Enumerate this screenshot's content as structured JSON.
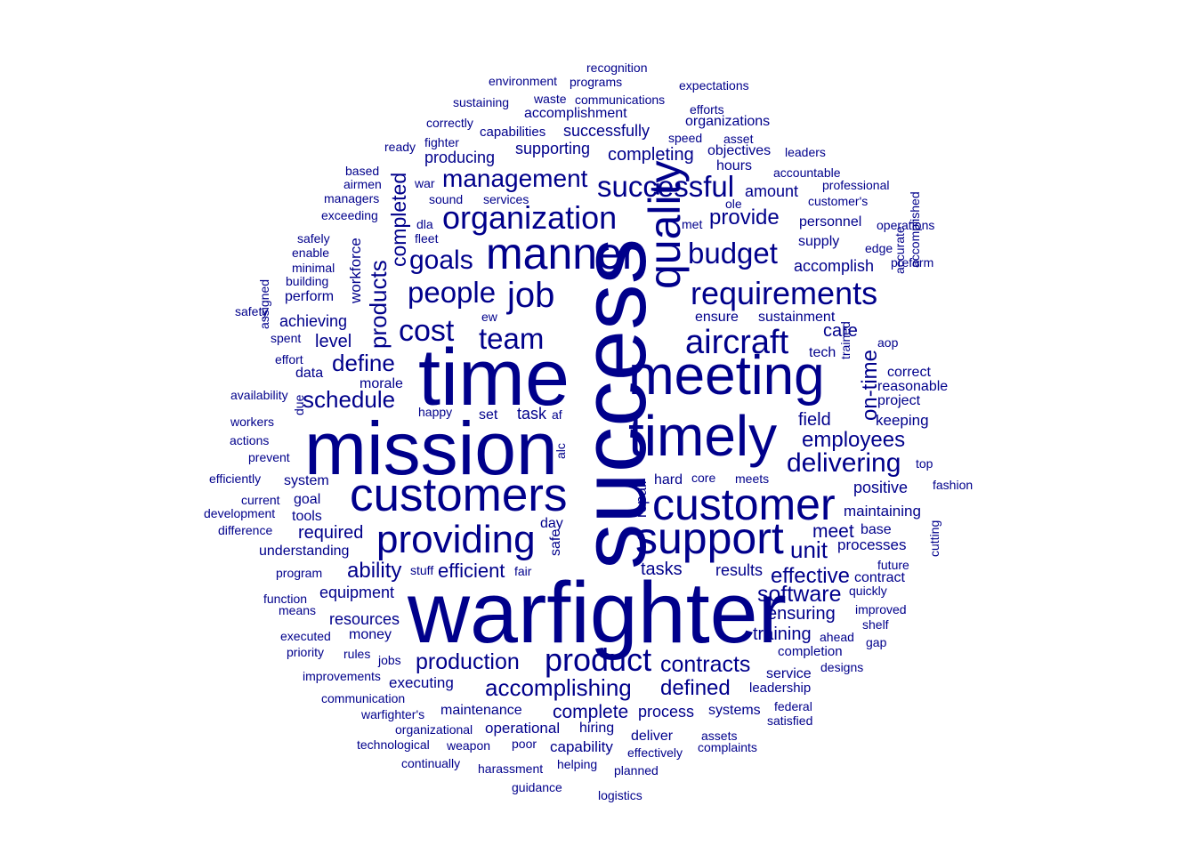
{
  "words": [
    {
      "text": "warfighter",
      "size": 11,
      "vertical": false
    },
    {
      "text": "success",
      "size": 10,
      "vertical": true
    },
    {
      "text": "time",
      "size": 10,
      "vertical": false
    },
    {
      "text": "mission",
      "size": 10,
      "vertical": false
    },
    {
      "text": "timely",
      "size": 8,
      "vertical": false
    },
    {
      "text": "meeting",
      "size": 8,
      "vertical": false
    },
    {
      "text": "quality",
      "size": 7,
      "vertical": true
    },
    {
      "text": "customers",
      "size": 7,
      "vertical": false
    },
    {
      "text": "customer",
      "size": 7,
      "vertical": false
    },
    {
      "text": "support",
      "size": 7,
      "vertical": false
    },
    {
      "text": "manner",
      "size": 7,
      "vertical": false
    },
    {
      "text": "providing",
      "size": 6,
      "vertical": false
    },
    {
      "text": "product",
      "size": 5,
      "vertical": false
    },
    {
      "text": "organization",
      "size": 5,
      "vertical": false
    },
    {
      "text": "aircraft",
      "size": 5,
      "vertical": false
    },
    {
      "text": "job",
      "size": 5,
      "vertical": false
    },
    {
      "text": "requirements",
      "size": 5,
      "vertical": false
    },
    {
      "text": "successful",
      "size": 5,
      "vertical": false
    },
    {
      "text": "cost",
      "size": 4,
      "vertical": false
    },
    {
      "text": "team",
      "size": 4,
      "vertical": false
    },
    {
      "text": "people",
      "size": 4,
      "vertical": false
    },
    {
      "text": "budget",
      "size": 4,
      "vertical": false
    },
    {
      "text": "goals",
      "size": 4,
      "vertical": false
    },
    {
      "text": "management",
      "size": 4,
      "vertical": false
    },
    {
      "text": "delivering",
      "size": 4,
      "vertical": false
    },
    {
      "text": "accomplishing",
      "size": 3,
      "vertical": false
    },
    {
      "text": "production",
      "size": 3,
      "vertical": false
    },
    {
      "text": "contracts",
      "size": 3,
      "vertical": false
    },
    {
      "text": "define",
      "size": 3,
      "vertical": false
    },
    {
      "text": "schedule",
      "size": 3,
      "vertical": false
    },
    {
      "text": "employees",
      "size": 3,
      "vertical": false
    },
    {
      "text": "software",
      "size": 3,
      "vertical": false
    },
    {
      "text": "effective",
      "size": 3,
      "vertical": false
    },
    {
      "text": "products",
      "size": 3,
      "vertical": true
    },
    {
      "text": "defined",
      "size": 3,
      "vertical": false
    },
    {
      "text": "ability",
      "size": 3,
      "vertical": false
    },
    {
      "text": "unit",
      "size": 3,
      "vertical": false
    },
    {
      "text": "provide",
      "size": 3,
      "vertical": false
    },
    {
      "text": "completed",
      "size": 3,
      "vertical": true
    },
    {
      "text": "on-time",
      "size": 3,
      "vertical": true
    },
    {
      "text": "efficient",
      "size": 2,
      "vertical": false
    },
    {
      "text": "complete",
      "size": 2,
      "vertical": false
    },
    {
      "text": "meet",
      "size": 2,
      "vertical": false
    },
    {
      "text": "tasks",
      "size": 2,
      "vertical": false
    },
    {
      "text": "training",
      "size": 2,
      "vertical": false
    },
    {
      "text": "ensuring",
      "size": 2,
      "vertical": false
    },
    {
      "text": "level",
      "size": 2,
      "vertical": false
    },
    {
      "text": "care",
      "size": 2,
      "vertical": false
    },
    {
      "text": "completing",
      "size": 2,
      "vertical": false
    },
    {
      "text": "field",
      "size": 2,
      "vertical": false
    },
    {
      "text": "positive",
      "size": 2,
      "vertical": false
    },
    {
      "text": "process",
      "size": 2,
      "vertical": false
    },
    {
      "text": "results",
      "size": 2,
      "vertical": false
    },
    {
      "text": "required",
      "size": 2,
      "vertical": false
    },
    {
      "text": "achieving",
      "size": 2,
      "vertical": false
    },
    {
      "text": "supporting",
      "size": 2,
      "vertical": false
    },
    {
      "text": "successfully",
      "size": 2,
      "vertical": false
    },
    {
      "text": "accomplish",
      "size": 2,
      "vertical": false
    },
    {
      "text": "amount",
      "size": 2,
      "vertical": false
    },
    {
      "text": "producing",
      "size": 2,
      "vertical": false
    },
    {
      "text": "accomplishment",
      "size": 2,
      "vertical": false
    },
    {
      "text": "equipment",
      "size": 2,
      "vertical": false
    },
    {
      "text": "resources",
      "size": 2,
      "vertical": false
    },
    {
      "text": "maintaining",
      "size": 2,
      "vertical": false
    },
    {
      "text": "processes",
      "size": 2,
      "vertical": false
    },
    {
      "text": "workforce",
      "size": 2,
      "vertical": true
    },
    {
      "text": "repair",
      "size": 2,
      "vertical": true
    },
    {
      "text": "executing",
      "size": 2,
      "vertical": false
    },
    {
      "text": "task",
      "size": 2,
      "vertical": false
    },
    {
      "text": "understanding",
      "size": 2,
      "vertical": false
    },
    {
      "text": "money",
      "size": 2,
      "vertical": false
    },
    {
      "text": "maintenance",
      "size": 2,
      "vertical": false
    },
    {
      "text": "operational",
      "size": 2,
      "vertical": false
    },
    {
      "text": "capability",
      "size": 2,
      "vertical": false
    },
    {
      "text": "deliver",
      "size": 2,
      "vertical": false
    },
    {
      "text": "systems",
      "size": 2,
      "vertical": false
    },
    {
      "text": "leadership",
      "size": 2,
      "vertical": false
    },
    {
      "text": "service",
      "size": 2,
      "vertical": false
    },
    {
      "text": "completion",
      "size": 2,
      "vertical": false
    },
    {
      "text": "hiring",
      "size": 2,
      "vertical": false
    },
    {
      "text": "sustainment",
      "size": 2,
      "vertical": false
    },
    {
      "text": "ensure",
      "size": 2,
      "vertical": false
    },
    {
      "text": "supply",
      "size": 2,
      "vertical": false
    },
    {
      "text": "personnel",
      "size": 2,
      "vertical": false
    },
    {
      "text": "keeping",
      "size": 2,
      "vertical": false
    },
    {
      "text": "project",
      "size": 2,
      "vertical": false
    },
    {
      "text": "correct",
      "size": 2,
      "vertical": false
    },
    {
      "text": "reasonable",
      "size": 2,
      "vertical": false
    },
    {
      "text": "system",
      "size": 2,
      "vertical": false
    },
    {
      "text": "goal",
      "size": 2,
      "vertical": false
    },
    {
      "text": "tools",
      "size": 2,
      "vertical": false
    },
    {
      "text": "data",
      "size": 2,
      "vertical": false
    },
    {
      "text": "morale",
      "size": 2,
      "vertical": false
    },
    {
      "text": "perform",
      "size": 2,
      "vertical": false
    },
    {
      "text": "set",
      "size": 2,
      "vertical": false
    },
    {
      "text": "base",
      "size": 2,
      "vertical": false
    },
    {
      "text": "contract",
      "size": 2,
      "vertical": false
    },
    {
      "text": "objectives",
      "size": 2,
      "vertical": false
    },
    {
      "text": "hours",
      "size": 2,
      "vertical": false
    },
    {
      "text": "organizations",
      "size": 2,
      "vertical": false
    },
    {
      "text": "capabilities",
      "size": 2,
      "vertical": false
    },
    {
      "text": "day",
      "size": 2,
      "vertical": false
    },
    {
      "text": "safe",
      "size": 2,
      "vertical": true
    },
    {
      "text": "tech",
      "size": 2,
      "vertical": false
    },
    {
      "text": "hard",
      "size": 2,
      "vertical": false
    },
    {
      "text": "quickly",
      "size": 1,
      "vertical": false
    },
    {
      "text": "improved",
      "size": 1,
      "vertical": false
    },
    {
      "text": "recognition",
      "size": 1,
      "vertical": false
    },
    {
      "text": "environment",
      "size": 1,
      "vertical": false
    },
    {
      "text": "programs",
      "size": 1,
      "vertical": false
    },
    {
      "text": "expectations",
      "size": 1,
      "vertical": false
    },
    {
      "text": "sustaining",
      "size": 1,
      "vertical": false
    },
    {
      "text": "waste",
      "size": 1,
      "vertical": false
    },
    {
      "text": "communications",
      "size": 1,
      "vertical": false
    },
    {
      "text": "efforts",
      "size": 1,
      "vertical": false
    },
    {
      "text": "correctly",
      "size": 1,
      "vertical": false
    },
    {
      "text": "speed",
      "size": 1,
      "vertical": false
    },
    {
      "text": "asset",
      "size": 1,
      "vertical": false
    },
    {
      "text": "ready",
      "size": 1,
      "vertical": false
    },
    {
      "text": "fighter",
      "size": 1,
      "vertical": false
    },
    {
      "text": "leaders",
      "size": 1,
      "vertical": false
    },
    {
      "text": "based",
      "size": 1,
      "vertical": false
    },
    {
      "text": "accountable",
      "size": 1,
      "vertical": false
    },
    {
      "text": "airmen",
      "size": 1,
      "vertical": false
    },
    {
      "text": "war",
      "size": 1,
      "vertical": false
    },
    {
      "text": "professional",
      "size": 1,
      "vertical": false
    },
    {
      "text": "managers",
      "size": 1,
      "vertical": false
    },
    {
      "text": "sound",
      "size": 1,
      "vertical": false
    },
    {
      "text": "services",
      "size": 1,
      "vertical": false
    },
    {
      "text": "ole",
      "size": 1,
      "vertical": false
    },
    {
      "text": "customer's",
      "size": 1,
      "vertical": false
    },
    {
      "text": "exceeding",
      "size": 1,
      "vertical": false
    },
    {
      "text": "met",
      "size": 1,
      "vertical": false
    },
    {
      "text": "operations",
      "size": 1,
      "vertical": false
    },
    {
      "text": "dla",
      "size": 1,
      "vertical": false
    },
    {
      "text": "fleet",
      "size": 1,
      "vertical": false
    },
    {
      "text": "safely",
      "size": 1,
      "vertical": false
    },
    {
      "text": "edge",
      "size": 1,
      "vertical": false
    },
    {
      "text": "enable",
      "size": 1,
      "vertical": false
    },
    {
      "text": "preform",
      "size": 1,
      "vertical": false
    },
    {
      "text": "minimal",
      "size": 1,
      "vertical": false
    },
    {
      "text": "building",
      "size": 1,
      "vertical": false
    },
    {
      "text": "accurate",
      "size": 1,
      "vertical": true
    },
    {
      "text": "accomplished",
      "size": 1,
      "vertical": true
    },
    {
      "text": "safety",
      "size": 1,
      "vertical": false
    },
    {
      "text": "ew",
      "size": 1,
      "vertical": false
    },
    {
      "text": "spent",
      "size": 1,
      "vertical": false
    },
    {
      "text": "assigned",
      "size": 1,
      "vertical": true
    },
    {
      "text": "aop",
      "size": 1,
      "vertical": false
    },
    {
      "text": "effort",
      "size": 1,
      "vertical": false
    },
    {
      "text": "trained",
      "size": 1,
      "vertical": true
    },
    {
      "text": "availability",
      "size": 1,
      "vertical": false
    },
    {
      "text": "happy",
      "size": 1,
      "vertical": false
    },
    {
      "text": "af",
      "size": 1,
      "vertical": false
    },
    {
      "text": "workers",
      "size": 1,
      "vertical": false
    },
    {
      "text": "due",
      "size": 1,
      "vertical": true
    },
    {
      "text": "actions",
      "size": 1,
      "vertical": false
    },
    {
      "text": "prevent",
      "size": 1,
      "vertical": false
    },
    {
      "text": "alc",
      "size": 1,
      "vertical": true
    },
    {
      "text": "top",
      "size": 1,
      "vertical": false
    },
    {
      "text": "efficiently",
      "size": 1,
      "vertical": false
    },
    {
      "text": "core",
      "size": 1,
      "vertical": false
    },
    {
      "text": "meets",
      "size": 1,
      "vertical": false
    },
    {
      "text": "fashion",
      "size": 1,
      "vertical": false
    },
    {
      "text": "current",
      "size": 1,
      "vertical": false
    },
    {
      "text": "development",
      "size": 1,
      "vertical": false
    },
    {
      "text": "difference",
      "size": 1,
      "vertical": false
    },
    {
      "text": "future",
      "size": 1,
      "vertical": false
    },
    {
      "text": "cutting",
      "size": 1,
      "vertical": true
    },
    {
      "text": "program",
      "size": 1,
      "vertical": false
    },
    {
      "text": "stuff",
      "size": 1,
      "vertical": false
    },
    {
      "text": "fair",
      "size": 1,
      "vertical": false
    },
    {
      "text": "function",
      "size": 1,
      "vertical": false
    },
    {
      "text": "means",
      "size": 1,
      "vertical": false
    },
    {
      "text": "executed",
      "size": 1,
      "vertical": false
    },
    {
      "text": "ahead",
      "size": 1,
      "vertical": false
    },
    {
      "text": "shelf",
      "size": 1,
      "vertical": false
    },
    {
      "text": "gap",
      "size": 1,
      "vertical": false
    },
    {
      "text": "priority",
      "size": 1,
      "vertical": false
    },
    {
      "text": "rules",
      "size": 1,
      "vertical": false
    },
    {
      "text": "jobs",
      "size": 1,
      "vertical": false
    },
    {
      "text": "designs",
      "size": 1,
      "vertical": false
    },
    {
      "text": "improvements",
      "size": 1,
      "vertical": false
    },
    {
      "text": "communication",
      "size": 1,
      "vertical": false
    },
    {
      "text": "federal",
      "size": 1,
      "vertical": false
    },
    {
      "text": "warfighter's",
      "size": 1,
      "vertical": false
    },
    {
      "text": "satisfied",
      "size": 1,
      "vertical": false
    },
    {
      "text": "organizational",
      "size": 1,
      "vertical": false
    },
    {
      "text": "assets",
      "size": 1,
      "vertical": false
    },
    {
      "text": "technological",
      "size": 1,
      "vertical": false
    },
    {
      "text": "weapon",
      "size": 1,
      "vertical": false
    },
    {
      "text": "poor",
      "size": 1,
      "vertical": false
    },
    {
      "text": "complaints",
      "size": 1,
      "vertical": false
    },
    {
      "text": "effectively",
      "size": 1,
      "vertical": false
    },
    {
      "text": "continually",
      "size": 1,
      "vertical": false
    },
    {
      "text": "harassment",
      "size": 1,
      "vertical": false
    },
    {
      "text": "helping",
      "size": 1,
      "vertical": false
    },
    {
      "text": "planned",
      "size": 1,
      "vertical": false
    },
    {
      "text": "guidance",
      "size": 1,
      "vertical": false
    },
    {
      "text": "logistics",
      "size": 1,
      "vertical": false
    }
  ]
}
